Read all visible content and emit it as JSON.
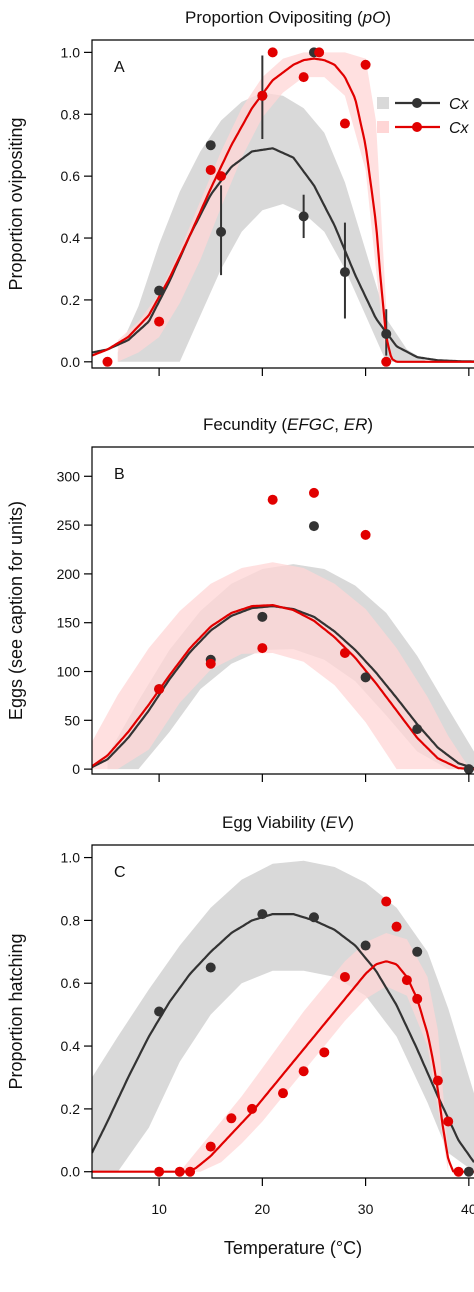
{
  "figure": {
    "xlabel": "Temperature (°C)",
    "x_tick_labels": [
      "10",
      "20",
      "30",
      "40"
    ]
  },
  "legend": {
    "entries": [
      {
        "label": "Cx",
        "color": "#333333",
        "band_color": "#d9d9d9"
      },
      {
        "label": "Cx",
        "color": "#e10000",
        "band_color": "#ffd6d6"
      }
    ]
  },
  "chart_data": [
    {
      "type": "scatter",
      "panel": "A",
      "title": "Proportion Ovipositing (pO)",
      "title_parts": [
        {
          "text": "Proportion Ovipositing (",
          "italic": false
        },
        {
          "text": "pO",
          "italic": true
        },
        {
          "text": ")",
          "italic": false
        }
      ],
      "xlabel": "",
      "ylabel": "Proportion ovipositing",
      "xlim": [
        3.5,
        40.5
      ],
      "ylim": [
        -0.02,
        1.04
      ],
      "xticks": [
        10,
        20,
        30,
        40
      ],
      "yticks": [
        0.0,
        0.2,
        0.4,
        0.6,
        0.8,
        1.0
      ],
      "ytick_labels": [
        "0.0",
        "0.2",
        "0.4",
        "0.6",
        "0.8",
        "1.0"
      ],
      "grid": false,
      "legend_position": "top-right",
      "series": [
        {
          "color": "#333333",
          "points": [
            {
              "x": 10.0,
              "y": 0.23
            },
            {
              "x": 15.0,
              "y": 0.7
            },
            {
              "x": 16.0,
              "y": 0.42,
              "err_low": 0.28,
              "err_high": 0.57
            },
            {
              "x": 20.0,
              "y": 0.86,
              "err_low": 0.72,
              "err_high": 0.99
            },
            {
              "x": 24.0,
              "y": 0.47,
              "err_low": 0.4,
              "err_high": 0.54
            },
            {
              "x": 25.0,
              "y": 1.0
            },
            {
              "x": 28.0,
              "y": 0.29,
              "err_low": 0.14,
              "err_high": 0.45
            },
            {
              "x": 32.0,
              "y": 0.09,
              "err_low": 0.02,
              "err_high": 0.17
            }
          ],
          "fit": {
            "x": [
              3.5,
              5,
              7,
              9,
              11,
              13,
              15,
              17,
              19,
              21,
              23,
              25,
              27,
              29,
              31,
              33,
              35,
              37,
              39,
              40.5
            ],
            "y": [
              0.03,
              0.04,
              0.07,
              0.13,
              0.26,
              0.41,
              0.54,
              0.63,
              0.68,
              0.69,
              0.66,
              0.57,
              0.44,
              0.28,
              0.14,
              0.05,
              0.015,
              0.005,
              0.002,
              0.001
            ]
          },
          "band": {
            "x": [
              6.0,
              8.0,
              10.0,
              12.0,
              14.0,
              16.0,
              18.0,
              20.0,
              22.0,
              24.0,
              26.0,
              28.0,
              30.0,
              32.0,
              34.0,
              36.0
            ],
            "lower": [
              0.0,
              0.0,
              0.0,
              0.0,
              0.15,
              0.3,
              0.42,
              0.49,
              0.51,
              0.48,
              0.42,
              0.3,
              0.15,
              0.0,
              0.0,
              0.0
            ],
            "upper": [
              0.03,
              0.18,
              0.38,
              0.55,
              0.68,
              0.78,
              0.84,
              0.87,
              0.86,
              0.82,
              0.74,
              0.58,
              0.36,
              0.14,
              0.04,
              0.0
            ]
          }
        },
        {
          "color": "#e10000",
          "points": [
            {
              "x": 5.0,
              "y": 0.0
            },
            {
              "x": 10.0,
              "y": 0.13
            },
            {
              "x": 15.0,
              "y": 0.62
            },
            {
              "x": 16.0,
              "y": 0.6
            },
            {
              "x": 20.0,
              "y": 0.86
            },
            {
              "x": 21.0,
              "y": 1.0
            },
            {
              "x": 24.0,
              "y": 0.92
            },
            {
              "x": 25.5,
              "y": 1.0
            },
            {
              "x": 28.0,
              "y": 0.77
            },
            {
              "x": 30.0,
              "y": 0.96
            },
            {
              "x": 32.0,
              "y": 0.0
            }
          ],
          "fit": {
            "x": [
              3.5,
              5,
              7,
              9,
              11,
              13,
              15,
              17,
              19,
              21,
              23,
              24,
              25,
              26,
              27,
              28,
              29,
              30,
              31,
              31.5,
              32,
              32.5,
              33,
              34,
              36,
              40.5
            ],
            "y": [
              0.02,
              0.04,
              0.08,
              0.15,
              0.27,
              0.41,
              0.56,
              0.7,
              0.82,
              0.91,
              0.96,
              0.975,
              0.98,
              0.975,
              0.96,
              0.92,
              0.85,
              0.7,
              0.45,
              0.25,
              0.08,
              0.01,
              0.0,
              0.0,
              0.0,
              0.0
            ]
          },
          "band": {
            "x": [
              6.0,
              8.0,
              10.0,
              12.0,
              14.0,
              16.0,
              18.0,
              20.0,
              22.0,
              24.0,
              26.0,
              28.0,
              30.0,
              31.0,
              32.0
            ],
            "lower": [
              0.0,
              0.03,
              0.08,
              0.19,
              0.33,
              0.5,
              0.66,
              0.79,
              0.87,
              0.92,
              0.92,
              0.86,
              0.62,
              0.3,
              0.0
            ],
            "upper": [
              0.07,
              0.13,
              0.22,
              0.36,
              0.52,
              0.68,
              0.82,
              0.92,
              0.98,
              1.0,
              1.0,
              1.0,
              0.98,
              0.78,
              0.18
            ]
          }
        }
      ]
    },
    {
      "type": "scatter",
      "panel": "B",
      "title": "Fecundity (EFGC, ER)",
      "title_parts": [
        {
          "text": "Fecundity (",
          "italic": false
        },
        {
          "text": "EFGC",
          "italic": true
        },
        {
          "text": ", ",
          "italic": false
        },
        {
          "text": "ER",
          "italic": true
        },
        {
          "text": ")",
          "italic": false
        }
      ],
      "xlabel": "",
      "ylabel": "Eggs (see caption for units)",
      "xlim": [
        3.5,
        40.5
      ],
      "ylim": [
        -5,
        330
      ],
      "xticks": [
        10,
        20,
        30,
        40
      ],
      "yticks": [
        0,
        50,
        100,
        150,
        200,
        250,
        300
      ],
      "ytick_labels": [
        "0",
        "50",
        "100",
        "150",
        "200",
        "250",
        "300"
      ],
      "grid": false,
      "series": [
        {
          "color": "#333333",
          "points": [
            {
              "x": 10.0,
              "y": 82
            },
            {
              "x": 15.0,
              "y": 112
            },
            {
              "x": 20.0,
              "y": 156
            },
            {
              "x": 25.0,
              "y": 249
            },
            {
              "x": 30.0,
              "y": 94
            },
            {
              "x": 35.0,
              "y": 41
            },
            {
              "x": 40.0,
              "y": 0
            }
          ],
          "fit": {
            "x": [
              3.5,
              5,
              7,
              9,
              11,
              13,
              15,
              17,
              19,
              21,
              23,
              25,
              27,
              29,
              31,
              33,
              35,
              37,
              39,
              40.5
            ],
            "y": [
              2,
              10,
              32,
              60,
              92,
              120,
              142,
              157,
              165,
              167,
              164,
              156,
              141,
              122,
              99,
              73,
              46,
              22,
              6,
              1
            ]
          },
          "band": {
            "x": [
              5.0,
              8.0,
              11.0,
              14.0,
              17.0,
              20.0,
              23.0,
              26.0,
              29.0,
              32.0,
              35.0,
              38.0,
              40.5
            ],
            "lower": [
              0,
              0,
              38,
              82,
              108,
              122,
              123,
              112,
              90,
              55,
              18,
              0,
              0
            ],
            "upper": [
              14,
              70,
              122,
              162,
              190,
              205,
              210,
              205,
              188,
              160,
              116,
              62,
              18
            ]
          }
        },
        {
          "color": "#e10000",
          "points": [
            {
              "x": 10.0,
              "y": 82
            },
            {
              "x": 15.0,
              "y": 108
            },
            {
              "x": 20.0,
              "y": 124
            },
            {
              "x": 21.0,
              "y": 276
            },
            {
              "x": 25.0,
              "y": 283
            },
            {
              "x": 28.0,
              "y": 119
            },
            {
              "x": 30.0,
              "y": 240
            }
          ],
          "fit": {
            "x": [
              3.5,
              5,
              7,
              9,
              11,
              13,
              15,
              17,
              19,
              21,
              23,
              25,
              27,
              29,
              31,
              33,
              35,
              37,
              39,
              40.5
            ],
            "y": [
              3,
              14,
              38,
              66,
              96,
              124,
              146,
              160,
              167,
              168,
              163,
              152,
              135,
              114,
              88,
              60,
              32,
              11,
              1,
              0
            ]
          },
          "band": {
            "x": [
              3.5,
              6.0,
              9.0,
              12.0,
              15.0,
              18.0,
              21.0,
              24.0,
              27.0,
              30.0,
              33.0,
              36.0,
              38.0,
              40.0
            ],
            "lower": [
              0,
              0,
              20,
              68,
              102,
              118,
              119,
              110,
              86,
              48,
              0,
              0,
              0,
              0
            ],
            "upper": [
              28,
              76,
              124,
              162,
              190,
              206,
              212,
              206,
              190,
              164,
              124,
              74,
              34,
              2
            ]
          }
        }
      ]
    },
    {
      "type": "scatter",
      "panel": "C",
      "title": "Egg Viability (EV)",
      "title_parts": [
        {
          "text": "Egg Viability (",
          "italic": false
        },
        {
          "text": "EV",
          "italic": true
        },
        {
          "text": ")",
          "italic": false
        }
      ],
      "xlabel": "Temperature (°C)",
      "ylabel": "Proportion hatching",
      "xlim": [
        3.5,
        40.5
      ],
      "ylim": [
        -0.02,
        1.04
      ],
      "xticks": [
        10,
        20,
        30,
        40
      ],
      "yticks": [
        0.0,
        0.2,
        0.4,
        0.6,
        0.8,
        1.0
      ],
      "ytick_labels": [
        "0.0",
        "0.2",
        "0.4",
        "0.6",
        "0.8",
        "1.0"
      ],
      "grid": false,
      "series": [
        {
          "color": "#333333",
          "points": [
            {
              "x": 10.0,
              "y": 0.51
            },
            {
              "x": 15.0,
              "y": 0.65
            },
            {
              "x": 20.0,
              "y": 0.82
            },
            {
              "x": 25.0,
              "y": 0.81
            },
            {
              "x": 30.0,
              "y": 0.72
            },
            {
              "x": 35.0,
              "y": 0.7
            },
            {
              "x": 40.0,
              "y": 0.0
            }
          ],
          "fit": {
            "x": [
              3.5,
              5,
              7,
              9,
              11,
              13,
              15,
              17,
              19,
              21,
              23,
              25,
              27,
              29,
              31,
              33,
              35,
              37,
              39,
              40.5
            ],
            "y": [
              0.06,
              0.16,
              0.3,
              0.43,
              0.54,
              0.63,
              0.7,
              0.76,
              0.8,
              0.82,
              0.82,
              0.8,
              0.77,
              0.72,
              0.64,
              0.53,
              0.39,
              0.24,
              0.1,
              0.03
            ]
          },
          "band": {
            "x": [
              3.5,
              6.0,
              9.0,
              12.0,
              15.0,
              18.0,
              21.0,
              24.0,
              27.0,
              30.0,
              33.0,
              36.0,
              38.0,
              40.5
            ],
            "lower": [
              0.0,
              0.0,
              0.14,
              0.35,
              0.5,
              0.6,
              0.64,
              0.64,
              0.62,
              0.56,
              0.43,
              0.22,
              0.06,
              0.0
            ],
            "upper": [
              0.3,
              0.43,
              0.58,
              0.72,
              0.84,
              0.93,
              0.98,
              0.99,
              0.97,
              0.92,
              0.84,
              0.7,
              0.52,
              0.25
            ]
          }
        },
        {
          "color": "#e10000",
          "points": [
            {
              "x": 10.0,
              "y": 0.0
            },
            {
              "x": 12.0,
              "y": 0.0
            },
            {
              "x": 13.0,
              "y": 0.0
            },
            {
              "x": 15.0,
              "y": 0.08
            },
            {
              "x": 17.0,
              "y": 0.17
            },
            {
              "x": 19.0,
              "y": 0.2
            },
            {
              "x": 22.0,
              "y": 0.25
            },
            {
              "x": 24.0,
              "y": 0.32
            },
            {
              "x": 26.0,
              "y": 0.38
            },
            {
              "x": 28.0,
              "y": 0.62
            },
            {
              "x": 32.0,
              "y": 0.86
            },
            {
              "x": 33.0,
              "y": 0.78
            },
            {
              "x": 34.0,
              "y": 0.61
            },
            {
              "x": 35.0,
              "y": 0.55
            },
            {
              "x": 37.0,
              "y": 0.29
            },
            {
              "x": 38.0,
              "y": 0.16
            },
            {
              "x": 39.0,
              "y": 0.0
            }
          ],
          "fit": {
            "x": [
              3.5,
              12.5,
              13.5,
              15,
              17,
              19,
              21,
              23,
              25,
              27,
              29,
              30,
              31,
              32,
              33,
              34,
              35,
              36,
              36.5,
              37,
              37.5,
              38,
              38.5,
              40.5
            ],
            "y": [
              0.0,
              0.0,
              0.01,
              0.05,
              0.12,
              0.19,
              0.27,
              0.35,
              0.43,
              0.51,
              0.59,
              0.63,
              0.66,
              0.67,
              0.66,
              0.62,
              0.55,
              0.44,
              0.36,
              0.26,
              0.14,
              0.04,
              0.0,
              0.0
            ]
          },
          "band": {
            "x": [
              12.0,
              14.0,
              16.0,
              18.0,
              20.0,
              22.0,
              24.0,
              26.0,
              28.0,
              30.0,
              32.0,
              34.0,
              36.0,
              37.0,
              38.0
            ],
            "lower": [
              0.0,
              0.0,
              0.03,
              0.09,
              0.16,
              0.24,
              0.32,
              0.4,
              0.48,
              0.55,
              0.59,
              0.56,
              0.4,
              0.2,
              0.0
            ],
            "upper": [
              0.0,
              0.08,
              0.16,
              0.24,
              0.33,
              0.42,
              0.51,
              0.59,
              0.67,
              0.73,
              0.76,
              0.74,
              0.62,
              0.45,
              0.06
            ]
          }
        }
      ]
    }
  ]
}
